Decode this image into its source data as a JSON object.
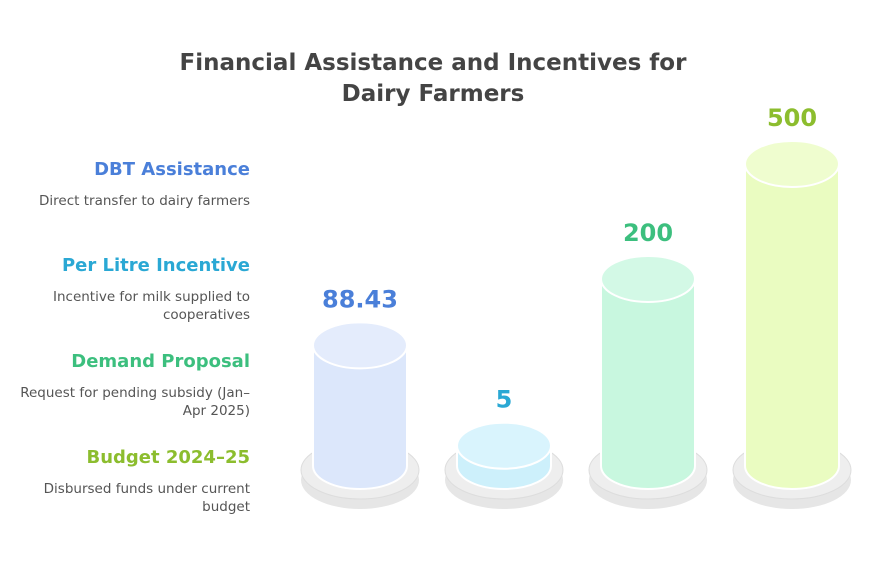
{
  "title": "Financial Assistance and Incentives for Dairy Farmers",
  "legend": [
    {
      "name": "DBT Assistance",
      "description": "Direct transfer to dairy farmers",
      "color": "#4a7fd9",
      "fill": "#dce7fb",
      "top": "#e4ecfc"
    },
    {
      "name": "Per Litre Incentive",
      "description": "Incentive for milk supplied to cooperatives",
      "color": "#2aa8d4",
      "fill": "#cdf0fb",
      "top": "#d9f4fd"
    },
    {
      "name": "Demand Proposal",
      "description": "Request for pending subsidy (Jan–Apr 2025)",
      "color": "#3cbf7e",
      "fill": "#c8f7df",
      "top": "#d3f9e6"
    },
    {
      "name": "Budget 2024–25",
      "description": "Disbursed funds under current budget",
      "color": "#8cbd2e",
      "fill": "#eafcc1",
      "top": "#effdcf"
    }
  ],
  "chart_data": {
    "type": "bar",
    "title": "Financial Assistance and Incentives for Dairy Farmers",
    "categories": [
      "DBT Assistance",
      "Per Litre Incentive",
      "Demand Proposal",
      "Budget 2024–25"
    ],
    "values": [
      88.43,
      5,
      200,
      500
    ],
    "value_labels": [
      "88.43",
      "5",
      "200",
      "500"
    ]
  }
}
